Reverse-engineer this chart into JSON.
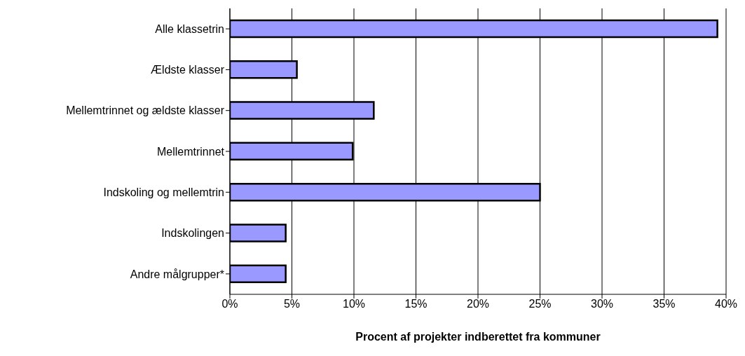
{
  "chart_data": {
    "type": "bar",
    "orientation": "horizontal",
    "xlabel": "Procent af projekter indberettet fra kommuner",
    "categories": [
      "Alle klassetrin",
      "Ældste klasser",
      "Mellemtrinnet og ældste klasser",
      "Mellemtrinnet",
      "Indskoling og mellemtrin",
      "Indskolingen",
      "Andre målgrupper*"
    ],
    "values": [
      39.3,
      5.4,
      11.6,
      9.9,
      25.0,
      4.5,
      4.5
    ],
    "color": "#9999ff",
    "xlim": [
      0,
      40
    ],
    "xticks": [
      {
        "value": 0,
        "label": "0%"
      },
      {
        "value": 5,
        "label": "5%"
      },
      {
        "value": 10,
        "label": "10%"
      },
      {
        "value": 15,
        "label": "15%"
      },
      {
        "value": 20,
        "label": "20%"
      },
      {
        "value": 25,
        "label": "25%"
      },
      {
        "value": 30,
        "label": "30%"
      },
      {
        "value": 35,
        "label": "35%"
      },
      {
        "value": 40,
        "label": "40%"
      }
    ],
    "grid": "x"
  }
}
